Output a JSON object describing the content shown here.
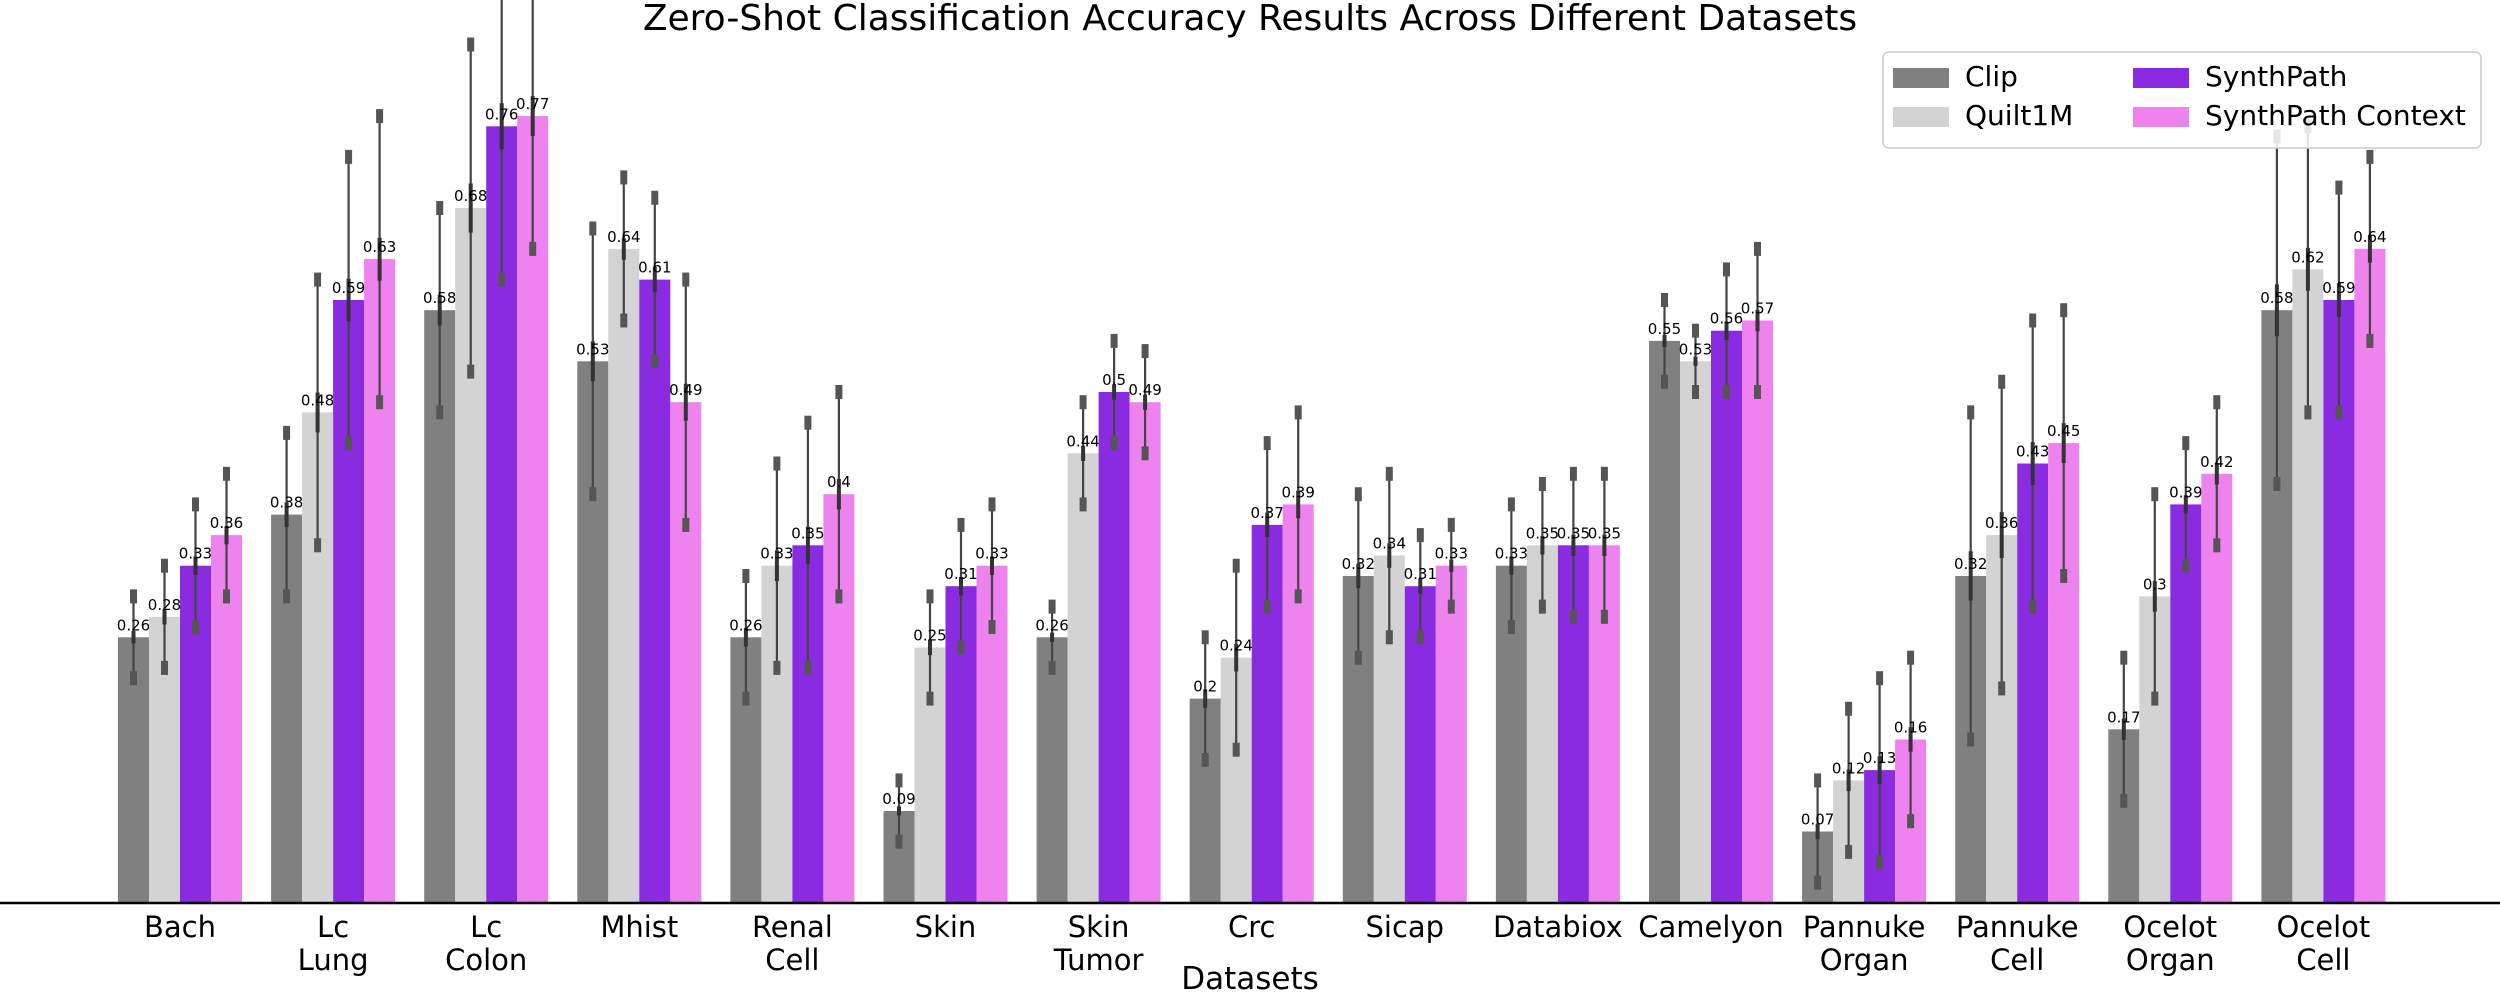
{
  "chart_data": {
    "type": "bar",
    "title": "Zero-Shot Classification Accuracy Results Across Different Datasets",
    "xlabel": "Datasets",
    "ylabel": "",
    "ylim": [
      0,
      0.85
    ],
    "categories": [
      [
        "Bach"
      ],
      [
        "Lc",
        "Lung"
      ],
      [
        "Lc",
        "Colon"
      ],
      [
        "Mhist"
      ],
      [
        "Renal",
        "Cell"
      ],
      [
        "Skin"
      ],
      [
        "Skin",
        "Tumor"
      ],
      [
        "Crc"
      ],
      [
        "Sicap"
      ],
      [
        "Databiox"
      ],
      [
        "Camelyon"
      ],
      [
        "Pannuke",
        "Organ"
      ],
      [
        "Pannuke",
        "Cell"
      ],
      [
        "Ocelot",
        "Organ"
      ],
      [
        "Ocelot",
        "Cell"
      ]
    ],
    "series": [
      {
        "name": "Clip",
        "color": "#808080",
        "values": [
          0.26,
          0.38,
          0.58,
          0.53,
          0.26,
          0.09,
          0.26,
          0.2,
          0.32,
          0.33,
          0.55,
          0.07,
          0.32,
          0.17,
          0.58
        ],
        "errors": [
          0.04,
          0.08,
          0.1,
          0.13,
          0.06,
          0.03,
          0.03,
          0.06,
          0.08,
          0.06,
          0.04,
          0.05,
          0.16,
          0.07,
          0.17
        ]
      },
      {
        "name": "Quilt1M",
        "color": "#d3d3d3",
        "values": [
          0.28,
          0.48,
          0.68,
          0.64,
          0.33,
          0.25,
          0.44,
          0.24,
          0.34,
          0.35,
          0.53,
          0.12,
          0.36,
          0.3,
          0.62
        ],
        "errors": [
          0.05,
          0.13,
          0.16,
          0.07,
          0.1,
          0.05,
          0.05,
          0.09,
          0.08,
          0.06,
          0.03,
          0.07,
          0.15,
          0.1,
          0.14
        ]
      },
      {
        "name": "SynthPath",
        "color": "#8a2be2",
        "values": [
          0.33,
          0.59,
          0.76,
          0.61,
          0.35,
          0.31,
          0.5,
          0.37,
          0.31,
          0.35,
          0.56,
          0.13,
          0.43,
          0.39,
          0.59
        ],
        "errors": [
          0.06,
          0.14,
          0.15,
          0.08,
          0.12,
          0.06,
          0.05,
          0.08,
          0.05,
          0.07,
          0.06,
          0.09,
          0.14,
          0.06,
          0.11
        ]
      },
      {
        "name": "SynthPath Context",
        "color": "#ee82ee",
        "values": [
          0.36,
          0.63,
          0.77,
          0.49,
          0.4,
          0.33,
          0.49,
          0.39,
          0.33,
          0.35,
          0.57,
          0.16,
          0.45,
          0.42,
          0.64
        ],
        "errors": [
          0.06,
          0.14,
          0.13,
          0.12,
          0.1,
          0.06,
          0.05,
          0.09,
          0.04,
          0.07,
          0.07,
          0.08,
          0.13,
          0.07,
          0.09
        ]
      }
    ],
    "legend": {
      "placement": "top-right",
      "ncol": 2
    },
    "grid": false
  }
}
